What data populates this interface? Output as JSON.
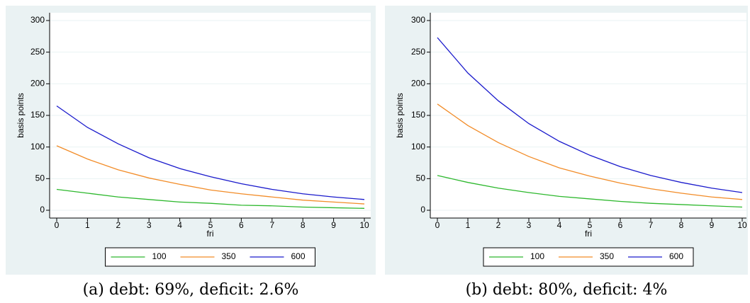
{
  "charts": [
    {
      "chart_data": {
        "type": "line",
        "caption": "(a) debt: 69%, deficit: 2.6%",
        "x_label": "fri",
        "y_label": "basis points",
        "x": [
          0,
          1,
          2,
          3,
          4,
          5,
          6,
          7,
          8,
          9,
          10
        ],
        "xlim": [
          0,
          10
        ],
        "xticks": [
          0,
          1,
          2,
          3,
          4,
          5,
          6,
          7,
          8,
          9,
          10
        ],
        "ylim": [
          0,
          300
        ],
        "yticks": [
          0,
          50,
          100,
          150,
          200,
          250,
          300
        ],
        "grid": true,
        "series": [
          {
            "name": "100",
            "color": "#2db82d",
            "values": [
              33,
              27,
              21,
              17,
              13,
              11,
              8,
              7,
              5,
              4,
              3
            ]
          },
          {
            "name": "350",
            "color": "#f28c28",
            "values": [
              102,
              81,
              64,
              51,
              41,
              32,
              26,
              21,
              16,
              13,
              10
            ]
          },
          {
            "name": "600",
            "color": "#1a1acc",
            "values": [
              165,
              131,
              105,
              83,
              66,
              53,
              42,
              33,
              26,
              21,
              17
            ]
          }
        ]
      }
    },
    {
      "chart_data": {
        "type": "line",
        "caption": "(b) debt: 80%, deficit: 4%",
        "x_label": "fri",
        "y_label": "basis points",
        "x": [
          0,
          1,
          2,
          3,
          4,
          5,
          6,
          7,
          8,
          9,
          10
        ],
        "xlim": [
          0,
          10
        ],
        "xticks": [
          0,
          1,
          2,
          3,
          4,
          5,
          6,
          7,
          8,
          9,
          10
        ],
        "ylim": [
          0,
          300
        ],
        "yticks": [
          0,
          50,
          100,
          150,
          200,
          250,
          300
        ],
        "grid": true,
        "series": [
          {
            "name": "100",
            "color": "#2db82d",
            "values": [
              55,
              44,
              35,
              28,
              22,
              18,
              14,
              11,
              9,
              7,
              5
            ]
          },
          {
            "name": "350",
            "color": "#f28c28",
            "values": [
              168,
              134,
              107,
              85,
              67,
              54,
              43,
              34,
              27,
              21,
              17
            ]
          },
          {
            "name": "600",
            "color": "#1a1acc",
            "values": [
              273,
              217,
              173,
              137,
              109,
              87,
              69,
              55,
              44,
              35,
              28
            ]
          }
        ]
      }
    }
  ]
}
